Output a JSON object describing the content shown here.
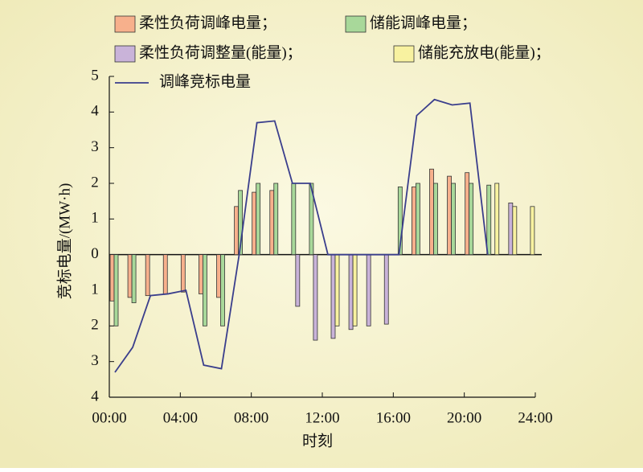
{
  "chart_data": {
    "type": "bar",
    "xlabel": "时刻",
    "ylabel": "竞标电量/(MW·h)",
    "x": [
      0,
      1,
      2,
      3,
      4,
      5,
      6,
      7,
      8,
      9,
      10,
      11,
      12,
      13,
      14,
      15,
      16,
      17,
      18,
      19,
      20,
      21,
      22,
      23
    ],
    "xlim": [
      0,
      24
    ],
    "xticks": [
      {
        "value": 0,
        "label": "00:00"
      },
      {
        "value": 4,
        "label": "04:00"
      },
      {
        "value": 8,
        "label": "08:00"
      },
      {
        "value": 12,
        "label": "12:00"
      },
      {
        "value": 16,
        "label": "16:00"
      },
      {
        "value": 20,
        "label": "20:00"
      },
      {
        "value": 24,
        "label": "24:00"
      }
    ],
    "ylim": [
      -4,
      5
    ],
    "yticks": [
      5,
      4,
      3,
      2,
      1,
      0,
      {
        "value": -1,
        "label": "1"
      },
      {
        "value": -2,
        "label": "2"
      },
      {
        "value": -3,
        "label": "3"
      },
      {
        "value": -4,
        "label": "4"
      }
    ],
    "series": [
      {
        "name": "柔性负荷调峰电量；",
        "type": "bar",
        "color": "#f7b08c",
        "values": [
          -1.3,
          -1.2,
          -1.15,
          -1.1,
          -1.05,
          -1.1,
          -1.2,
          1.35,
          1.75,
          1.8,
          null,
          null,
          null,
          null,
          null,
          null,
          null,
          1.9,
          2.4,
          2.2,
          2.3,
          null,
          null,
          null
        ]
      },
      {
        "name": "储能调峰电量；",
        "type": "bar",
        "color": "#a8d89a",
        "values": [
          -2.0,
          -1.35,
          null,
          null,
          null,
          -2.0,
          -2.0,
          1.8,
          2.0,
          2.0,
          2.0,
          2.0,
          null,
          null,
          null,
          null,
          1.9,
          2.0,
          2.0,
          2.0,
          2.0,
          1.95,
          null,
          null
        ]
      },
      {
        "name": "柔性负荷调整量(能量)；",
        "type": "bar",
        "color": "#c9b3d9",
        "values": [
          null,
          null,
          null,
          null,
          null,
          null,
          null,
          null,
          null,
          null,
          -1.45,
          -2.4,
          -2.35,
          -2.1,
          -2.0,
          -1.95,
          null,
          null,
          null,
          null,
          null,
          null,
          1.45,
          null
        ]
      },
      {
        "name": "储能充放电(能量)；",
        "type": "bar",
        "color": "#f8f2a0",
        "values": [
          null,
          null,
          null,
          null,
          null,
          null,
          null,
          null,
          null,
          null,
          null,
          null,
          -2.0,
          -2.0,
          null,
          null,
          null,
          null,
          null,
          null,
          null,
          2.0,
          1.35,
          1.35
        ]
      },
      {
        "name": "调峰竞标电量",
        "type": "line",
        "color": "#3a3e8c",
        "values": [
          -3.3,
          -2.6,
          -1.15,
          -1.1,
          -1.0,
          -3.1,
          -3.2,
          0,
          3.7,
          3.75,
          2.0,
          2.0,
          0,
          0,
          0,
          0,
          0,
          3.9,
          4.35,
          4.2,
          4.25,
          0,
          null,
          null
        ]
      }
    ]
  }
}
